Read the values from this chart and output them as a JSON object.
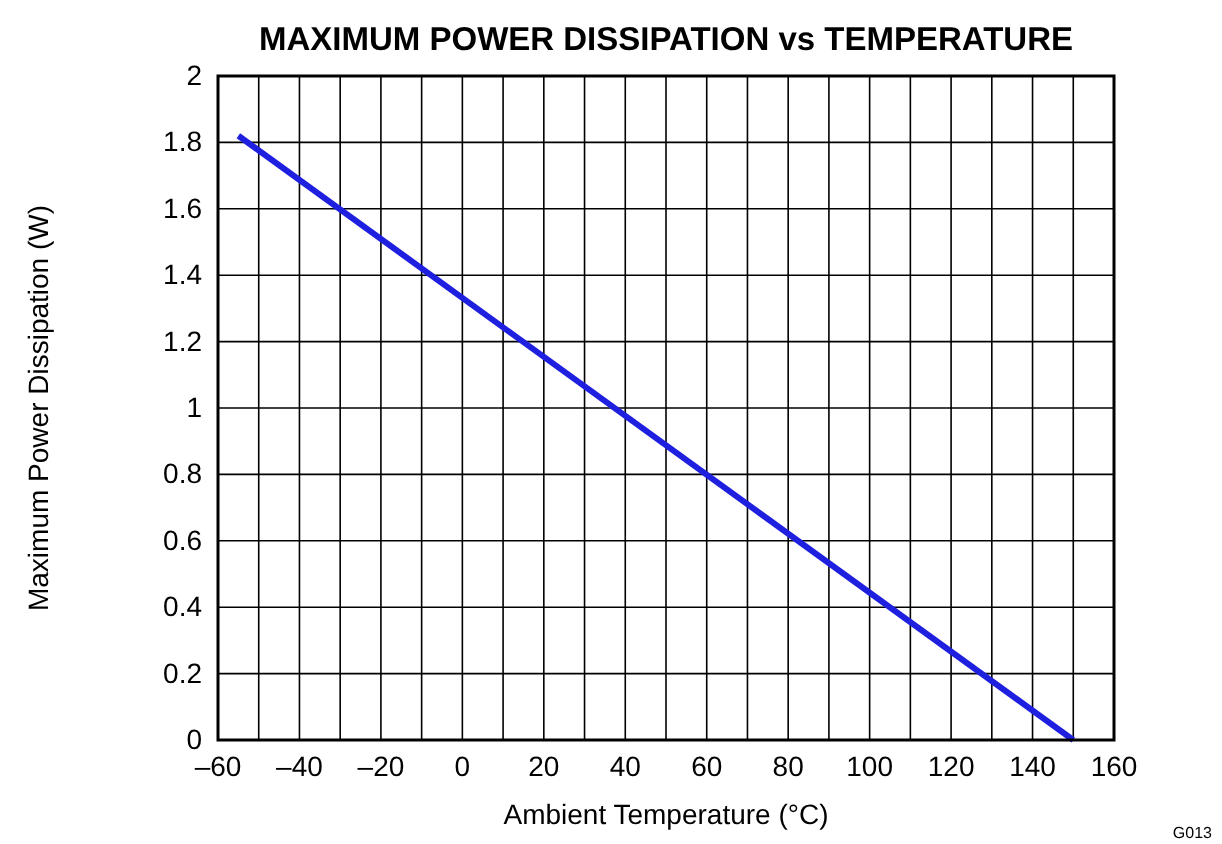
{
  "chart_data": {
    "type": "line",
    "title": "MAXIMUM POWER DISSIPATION vs TEMPERATURE",
    "xlabel": "Ambient Temperature (°C)",
    "ylabel": "Maximum Power Dissipation (W)",
    "x": [
      -55,
      150
    ],
    "series": [
      {
        "color": "#1f1fe0",
        "values": [
          1.82,
          0
        ]
      }
    ],
    "xlim": [
      -60,
      160
    ],
    "xticks": [
      {
        "value": -60,
        "label": "–60"
      },
      {
        "value": -50,
        "label": null
      },
      {
        "value": -40,
        "label": "–40"
      },
      {
        "value": -30,
        "label": null
      },
      {
        "value": -20,
        "label": "–20"
      },
      {
        "value": -10,
        "label": null
      },
      0,
      {
        "value": 10,
        "label": null
      },
      20,
      {
        "value": 30,
        "label": null
      },
      40,
      {
        "value": 50,
        "label": null
      },
      60,
      {
        "value": 70,
        "label": null
      },
      80,
      {
        "value": 90,
        "label": null
      },
      100,
      {
        "value": 110,
        "label": null
      },
      120,
      {
        "value": 130,
        "label": null
      },
      140,
      {
        "value": 150,
        "label": null
      },
      160
    ],
    "ylim": [
      0,
      2
    ],
    "yticks": [
      0,
      0.2,
      0.4,
      0.6,
      0.8,
      1,
      1.2,
      1.4,
      1.6,
      1.8,
      2
    ],
    "grid": true,
    "marker": "none",
    "line_style": "solid",
    "annotations": [
      "G013"
    ]
  }
}
